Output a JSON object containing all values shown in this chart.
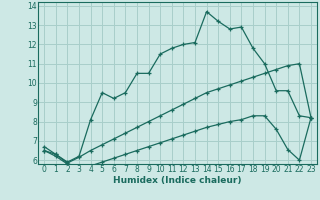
{
  "xlabel": "Humidex (Indice chaleur)",
  "background_color": "#cde8e5",
  "grid_color": "#a8ceca",
  "line_color": "#1a6b5e",
  "xlim": [
    -0.5,
    23.5
  ],
  "ylim": [
    5.8,
    14.2
  ],
  "xticks": [
    0,
    1,
    2,
    3,
    4,
    5,
    6,
    7,
    8,
    9,
    10,
    11,
    12,
    13,
    14,
    15,
    16,
    17,
    18,
    19,
    20,
    21,
    22,
    23
  ],
  "yticks": [
    6,
    7,
    8,
    9,
    10,
    11,
    12,
    13,
    14
  ],
  "line1_x": [
    0,
    1,
    2,
    3,
    4,
    5,
    6,
    7,
    8,
    9,
    10,
    11,
    12,
    13,
    14,
    15,
    16,
    17,
    18,
    19,
    20,
    21,
    22,
    23
  ],
  "line1_y": [
    6.7,
    6.3,
    5.9,
    6.2,
    8.1,
    9.5,
    9.2,
    9.5,
    10.5,
    10.5,
    11.5,
    11.8,
    12.0,
    12.1,
    13.7,
    13.2,
    12.8,
    12.9,
    11.8,
    11.0,
    9.6,
    9.6,
    8.3,
    8.2
  ],
  "line2_x": [
    0,
    1,
    2,
    3,
    4,
    5,
    6,
    7,
    8,
    9,
    10,
    11,
    12,
    13,
    14,
    15,
    16,
    17,
    18,
    19,
    20,
    21,
    22,
    23
  ],
  "line2_y": [
    6.5,
    6.3,
    5.85,
    6.15,
    6.5,
    6.8,
    7.1,
    7.4,
    7.7,
    8.0,
    8.3,
    8.6,
    8.9,
    9.2,
    9.5,
    9.7,
    9.9,
    10.1,
    10.3,
    10.5,
    10.7,
    10.9,
    11.0,
    8.2
  ],
  "line3_x": [
    0,
    1,
    2,
    3,
    4,
    5,
    6,
    7,
    8,
    9,
    10,
    11,
    12,
    13,
    14,
    15,
    16,
    17,
    18,
    19,
    20,
    21,
    22,
    23
  ],
  "line3_y": [
    6.5,
    6.2,
    5.8,
    5.7,
    5.7,
    5.9,
    6.1,
    6.3,
    6.5,
    6.7,
    6.9,
    7.1,
    7.3,
    7.5,
    7.7,
    7.85,
    8.0,
    8.1,
    8.3,
    8.3,
    7.6,
    6.55,
    6.0,
    8.2
  ],
  "xlabel_fontsize": 6.5,
  "tick_fontsize": 5.5
}
